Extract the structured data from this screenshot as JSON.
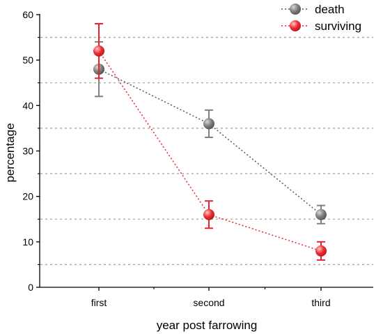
{
  "chart_data": {
    "type": "line",
    "xlabel": "year post farrowing",
    "ylabel": "percentage",
    "categories": [
      "first",
      "second",
      "third"
    ],
    "ylim": [
      0,
      60
    ],
    "yticks": [
      0,
      10,
      20,
      30,
      40,
      50,
      60
    ],
    "gridlines": [
      5,
      15,
      25,
      35,
      45,
      55
    ],
    "grid": "horizontal dotted",
    "legend_position": "top-right",
    "series": [
      {
        "name": "death",
        "values": [
          48,
          36,
          16
        ],
        "errors": [
          6,
          3,
          2
        ],
        "color": "#808080",
        "line_color": "#555555"
      },
      {
        "name": "surviving",
        "values": [
          52,
          16,
          8
        ],
        "errors": [
          6,
          3,
          2
        ],
        "color": "#e8232b",
        "line_color": "#e8232b"
      }
    ]
  }
}
